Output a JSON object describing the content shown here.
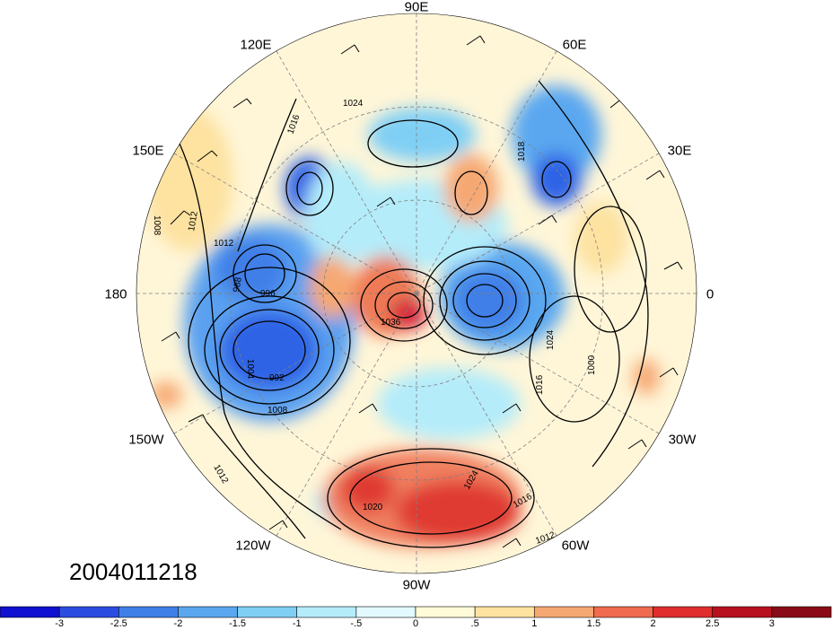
{
  "projection": "north-polar-stereographic",
  "longitude_labels": [
    {
      "text": "90E",
      "id": "lon-90e"
    },
    {
      "text": "60E",
      "id": "lon-60e"
    },
    {
      "text": "120E",
      "id": "lon-120e"
    },
    {
      "text": "30E",
      "id": "lon-30e"
    },
    {
      "text": "150E",
      "id": "lon-150e"
    },
    {
      "text": "0",
      "id": "lon-0"
    },
    {
      "text": "180",
      "id": "lon-180"
    },
    {
      "text": "30W",
      "id": "lon-30w"
    },
    {
      "text": "150W",
      "id": "lon-150w"
    },
    {
      "text": "60W",
      "id": "lon-60w"
    },
    {
      "text": "120W",
      "id": "lon-120w"
    },
    {
      "text": "90W",
      "id": "lon-90w"
    }
  ],
  "timestamp": "2004011218",
  "contour_labels": [
    "1024",
    "1016",
    "1018",
    "1008",
    "1012",
    "1012",
    "988",
    "996",
    "1004",
    "992",
    "1008",
    "1012",
    "1036",
    "1024",
    "1016",
    "1020",
    "1024",
    "1016",
    "1012",
    "1000"
  ],
  "colorbar": {
    "colors": [
      "#1010d0",
      "#2a4ce0",
      "#3f7fe8",
      "#5aa7f0",
      "#7fcff5",
      "#b4ecfa",
      "#e2faff",
      "#fffad8",
      "#fde2a0",
      "#f6a872",
      "#ef6a4e",
      "#e02d2d",
      "#b8101e",
      "#8a0a18"
    ],
    "tick_labels": [
      "-3",
      "-2.5",
      "-2",
      "-1.5",
      "-1",
      "-.5",
      "0",
      ".5",
      "1",
      "1.5",
      "2",
      "2.5",
      "3"
    ]
  },
  "colors": {
    "contour": "#000000",
    "grid": "#808080",
    "background": "#ffffff"
  }
}
